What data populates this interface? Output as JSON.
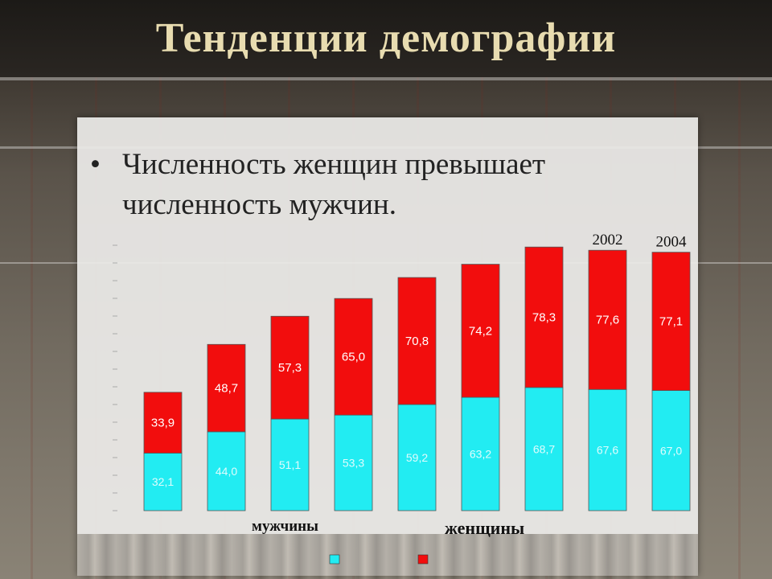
{
  "slide": {
    "title": "Тенденции демографии",
    "bullet": "Численность женщин превышает численность мужчин."
  },
  "colors": {
    "men": "#22ecf2",
    "women": "#f20d0d",
    "title": "#e8dcb0"
  },
  "chart_data": {
    "type": "bar",
    "stacked": true,
    "categories": [
      "",
      "",
      "",
      "",
      "",
      "",
      "",
      "2002",
      "2004"
    ],
    "series": [
      {
        "name": "мужчины",
        "values": [
          32.1,
          44.0,
          51.1,
          53.3,
          59.2,
          63.2,
          68.7,
          67.6,
          67.0
        ]
      },
      {
        "name": "женщины",
        "values": [
          33.9,
          48.7,
          57.3,
          65.0,
          70.8,
          74.2,
          78.3,
          77.6,
          77.1
        ]
      }
    ],
    "data_labels": {
      "men": [
        "32,1",
        "44,0",
        "51,1",
        "53,3",
        "59,2",
        "63,2",
        "68,7",
        "67,6",
        "67,0"
      ],
      "women": [
        "33,9",
        "48,7",
        "57,3",
        "65,0",
        "70,8",
        "74,2",
        "78,3",
        "77,6",
        "77,1"
      ]
    },
    "ylim": [
      0,
      150
    ],
    "legend_position": "bottom",
    "legend": {
      "men": "мужчины",
      "women": "женщины"
    }
  }
}
